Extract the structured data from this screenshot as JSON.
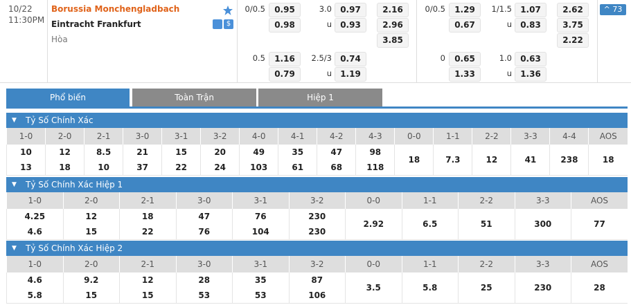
{
  "match": {
    "date": "10/22",
    "time": "11:30PM",
    "home": "Borussia Monchengladbach",
    "away": "Eintracht Frankfurt",
    "draw_label": "Hòa",
    "more": "73"
  },
  "full_time": {
    "handicap": [
      {
        "line": "0/0.5",
        "home": "0.95",
        "away": "0.98"
      },
      {
        "line": "0.5",
        "home": "1.16",
        "away": "0.79"
      }
    ],
    "over_under": [
      {
        "line": "3.0",
        "over": "0.97",
        "under_label": "u",
        "under": "0.93"
      },
      {
        "line": "2.5/3",
        "over": "0.74",
        "under_label": "u",
        "under": "1.19"
      }
    ],
    "x12": [
      "2.16",
      "2.96",
      "3.85"
    ]
  },
  "first_half": {
    "handicap": [
      {
        "line": "0/0.5",
        "home": "1.29",
        "away": "0.67"
      },
      {
        "line": "0",
        "home": "0.65",
        "away": "1.33"
      }
    ],
    "over_under": [
      {
        "line": "1/1.5",
        "over": "1.07",
        "under_label": "u",
        "under": "0.83"
      },
      {
        "line": "1.0",
        "over": "0.63",
        "under_label": "u",
        "under": "1.36"
      }
    ],
    "x12": [
      "2.62",
      "3.75",
      "2.22"
    ]
  },
  "tabs": [
    "Phổ biến",
    "Toàn Trận",
    "Hiệp 1"
  ],
  "sections": [
    {
      "title": "Tỷ Số Chính Xác",
      "columns": [
        {
          "label": "1-0",
          "home": "10",
          "away": "13"
        },
        {
          "label": "2-0",
          "home": "12",
          "away": "18"
        },
        {
          "label": "2-1",
          "home": "8.5",
          "away": "10"
        },
        {
          "label": "3-0",
          "home": "21",
          "away": "37"
        },
        {
          "label": "3-1",
          "home": "15",
          "away": "22"
        },
        {
          "label": "3-2",
          "home": "20",
          "away": "24"
        },
        {
          "label": "4-0",
          "home": "49",
          "away": "103"
        },
        {
          "label": "4-1",
          "home": "35",
          "away": "61"
        },
        {
          "label": "4-2",
          "home": "47",
          "away": "68"
        },
        {
          "label": "4-3",
          "home": "98",
          "away": "118"
        },
        {
          "label": "0-0",
          "value": "18"
        },
        {
          "label": "1-1",
          "value": "7.3"
        },
        {
          "label": "2-2",
          "value": "12"
        },
        {
          "label": "3-3",
          "value": "41"
        },
        {
          "label": "4-4",
          "value": "238"
        },
        {
          "label": "AOS",
          "value": "18"
        }
      ]
    },
    {
      "title": "Tỷ Số Chính Xác Hiệp 1",
      "columns": [
        {
          "label": "1-0",
          "home": "4.25",
          "away": "4.6"
        },
        {
          "label": "2-0",
          "home": "12",
          "away": "15"
        },
        {
          "label": "2-1",
          "home": "18",
          "away": "22"
        },
        {
          "label": "3-0",
          "home": "47",
          "away": "76"
        },
        {
          "label": "3-1",
          "home": "76",
          "away": "104"
        },
        {
          "label": "3-2",
          "home": "230",
          "away": "230"
        },
        {
          "label": "0-0",
          "value": "2.92"
        },
        {
          "label": "1-1",
          "value": "6.5"
        },
        {
          "label": "2-2",
          "value": "51"
        },
        {
          "label": "3-3",
          "value": "300"
        },
        {
          "label": "AOS",
          "value": "77"
        }
      ]
    },
    {
      "title": "Tỷ Số Chính Xác Hiệp 2",
      "columns": [
        {
          "label": "1-0",
          "home": "4.6",
          "away": "5.8"
        },
        {
          "label": "2-0",
          "home": "9.2",
          "away": "15"
        },
        {
          "label": "2-1",
          "home": "12",
          "away": "15"
        },
        {
          "label": "3-0",
          "home": "28",
          "away": "53"
        },
        {
          "label": "3-1",
          "home": "35",
          "away": "53"
        },
        {
          "label": "3-2",
          "home": "87",
          "away": "106"
        },
        {
          "label": "0-0",
          "value": "3.5"
        },
        {
          "label": "1-1",
          "value": "5.8"
        },
        {
          "label": "2-2",
          "value": "25"
        },
        {
          "label": "3-3",
          "value": "230"
        },
        {
          "label": "AOS",
          "value": "28"
        }
      ]
    }
  ]
}
